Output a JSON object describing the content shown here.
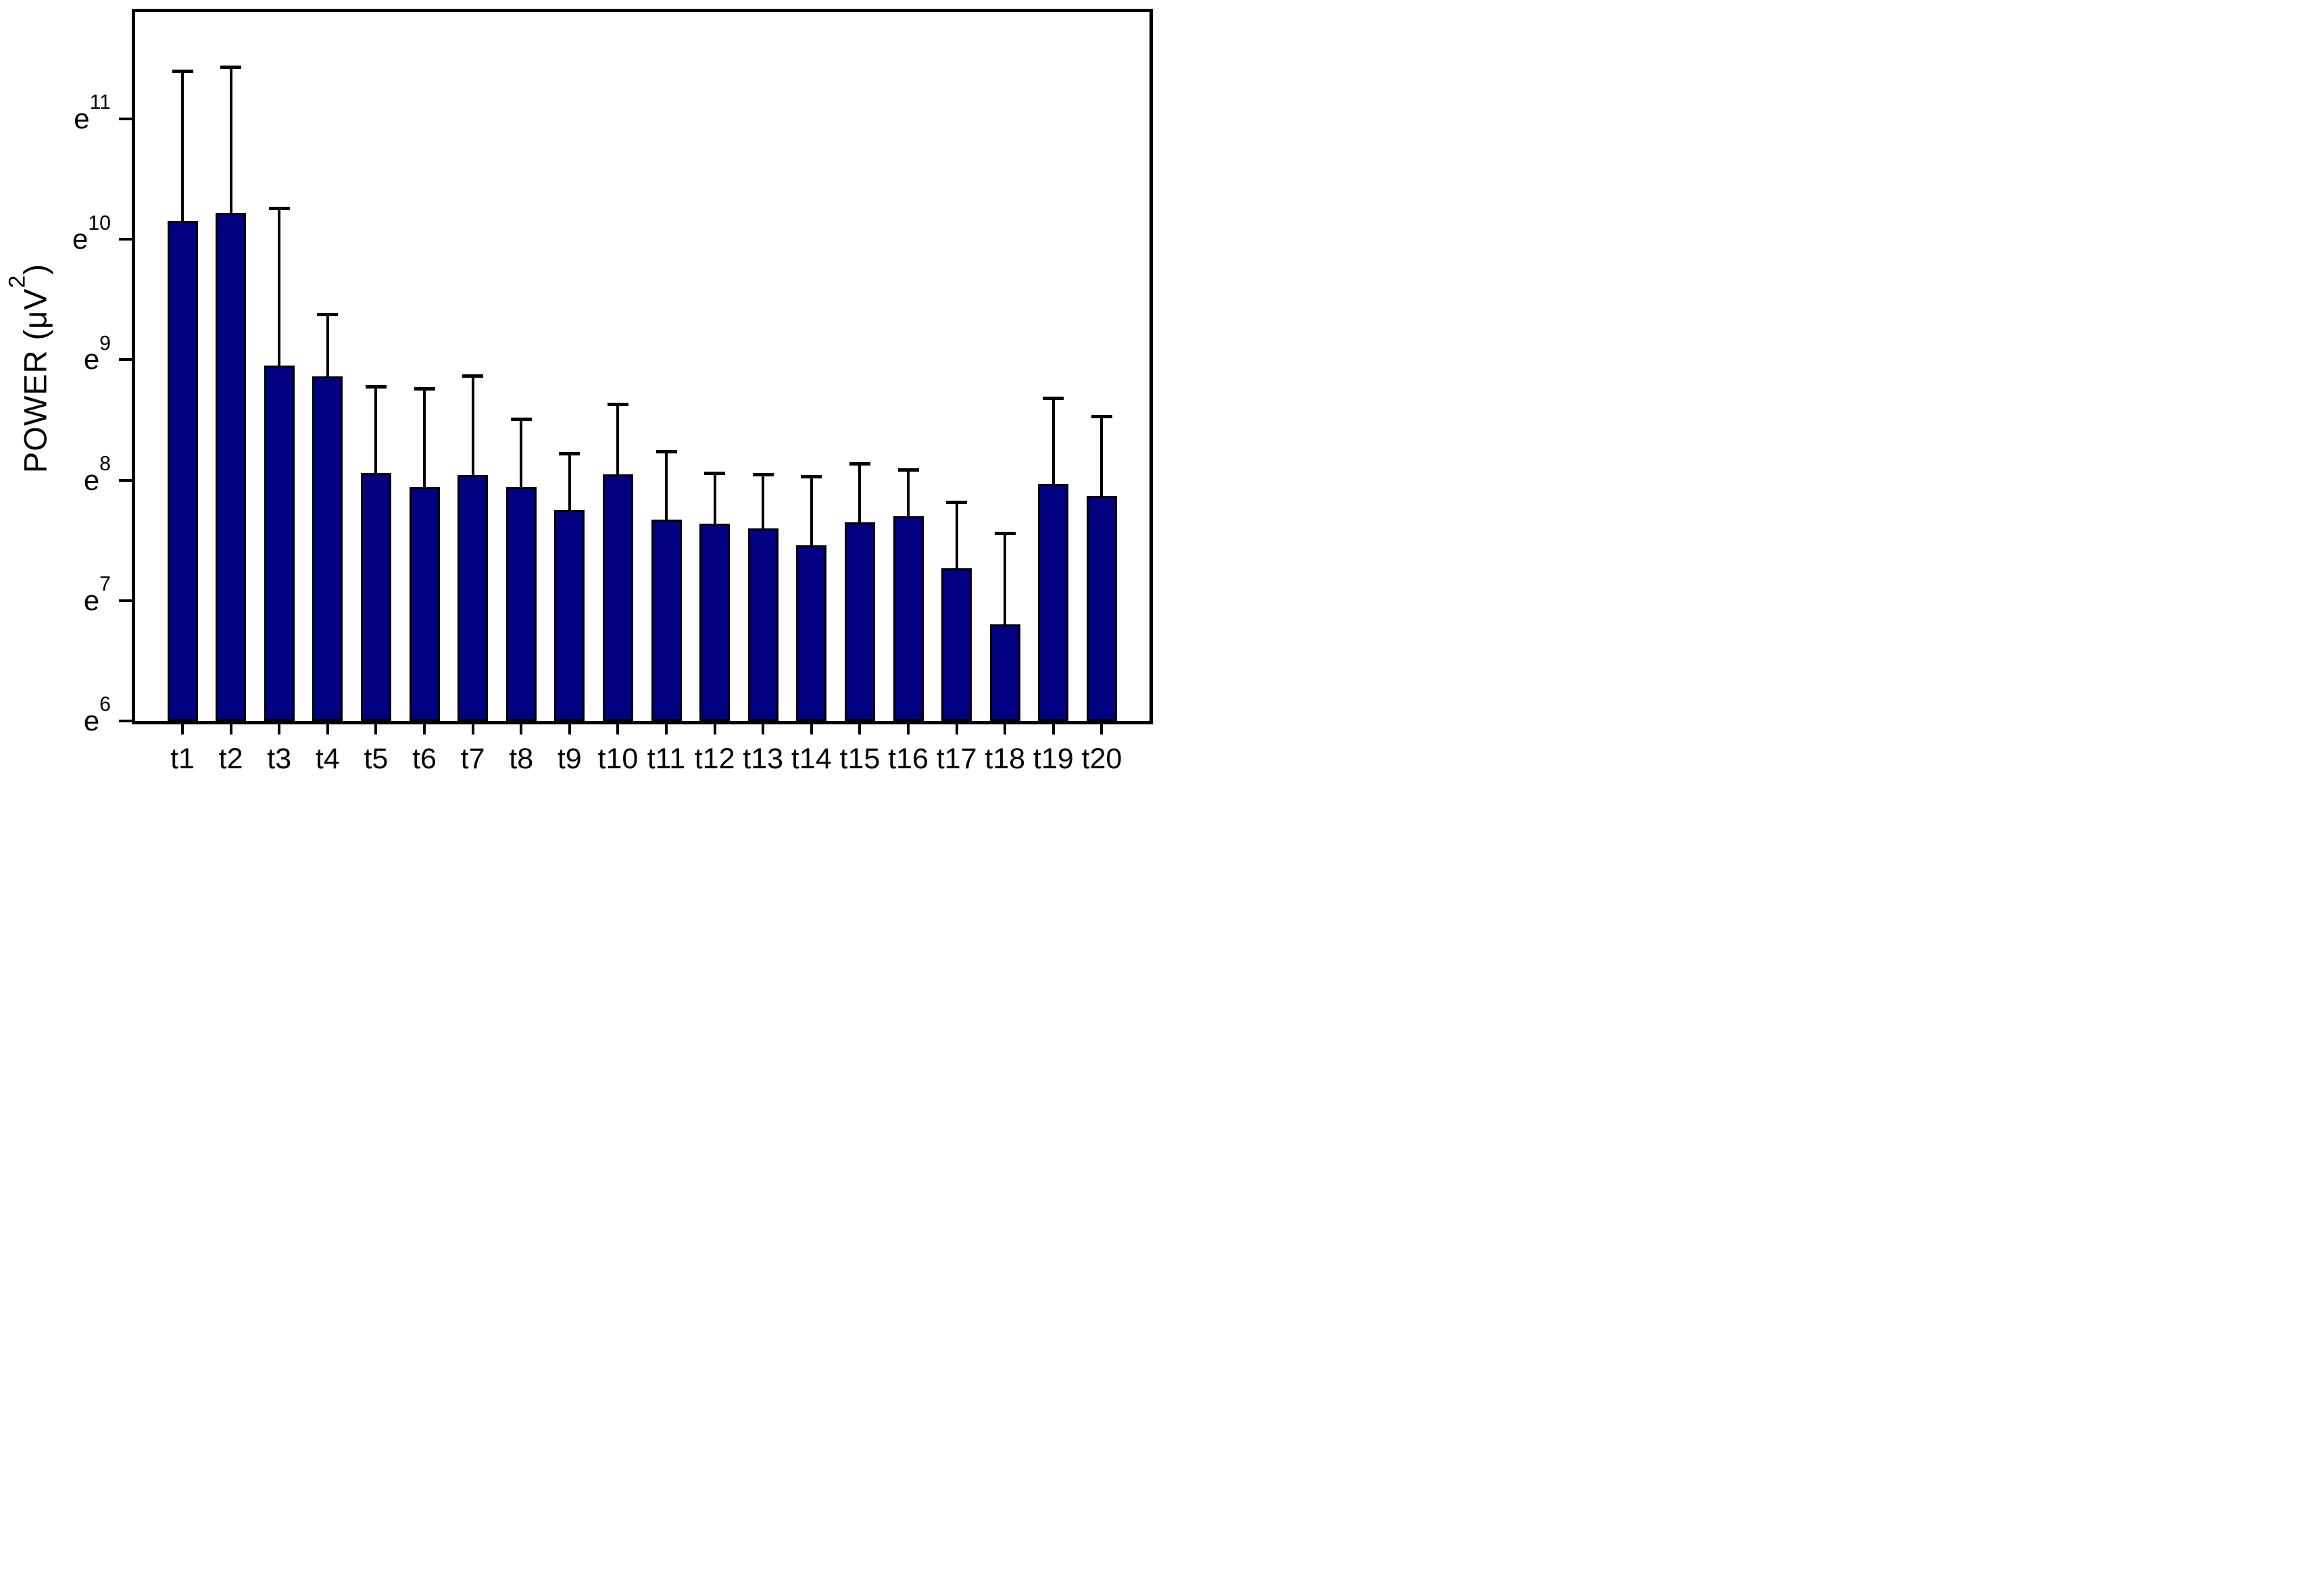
{
  "chart_data": {
    "type": "bar",
    "title": "",
    "xlabel": "",
    "y_axis": {
      "label_base": "POWER  (μV",
      "label_sup": "2",
      "label_end": ")",
      "scale": "natural-log",
      "ylim_ln": [
        6,
        11.886
      ],
      "ticks": [
        {
          "ln": 6,
          "base": "e",
          "sup": "6"
        },
        {
          "ln": 7,
          "base": "e",
          "sup": "7"
        },
        {
          "ln": 8,
          "base": "e",
          "sup": "8"
        },
        {
          "ln": 9,
          "base": "e",
          "sup": "9"
        },
        {
          "ln": 10,
          "base": "e",
          "sup": "10"
        },
        {
          "ln": 11,
          "base": "e",
          "sup": "11"
        }
      ]
    },
    "categories": [
      "t1",
      "t2",
      "t3",
      "t4",
      "t5",
      "t6",
      "t7",
      "t8",
      "t9",
      "t10",
      "t11",
      "t12",
      "t13",
      "t14",
      "t15",
      "t16",
      "t17",
      "t18",
      "t19",
      "t20"
    ],
    "bar_top_ln": [
      10.15,
      10.22,
      8.95,
      8.86,
      8.06,
      7.94,
      8.04,
      7.94,
      7.75,
      8.05,
      7.67,
      7.64,
      7.6,
      7.46,
      7.65,
      7.7,
      7.27,
      6.8,
      7.97,
      7.87
    ],
    "error_top_ln": [
      11.4,
      11.43,
      10.26,
      9.38,
      8.78,
      8.76,
      8.87,
      8.51,
      8.22,
      8.63,
      8.24,
      8.06,
      8.05,
      8.03,
      8.14,
      8.09,
      7.82,
      7.56,
      8.68,
      8.53
    ],
    "error_bars": "upper-only",
    "legend": null,
    "grid": false,
    "colors": {
      "bar_fill": "#000080",
      "bar_border": "#000000",
      "axis": "#000000",
      "background": "#ffffff"
    }
  }
}
